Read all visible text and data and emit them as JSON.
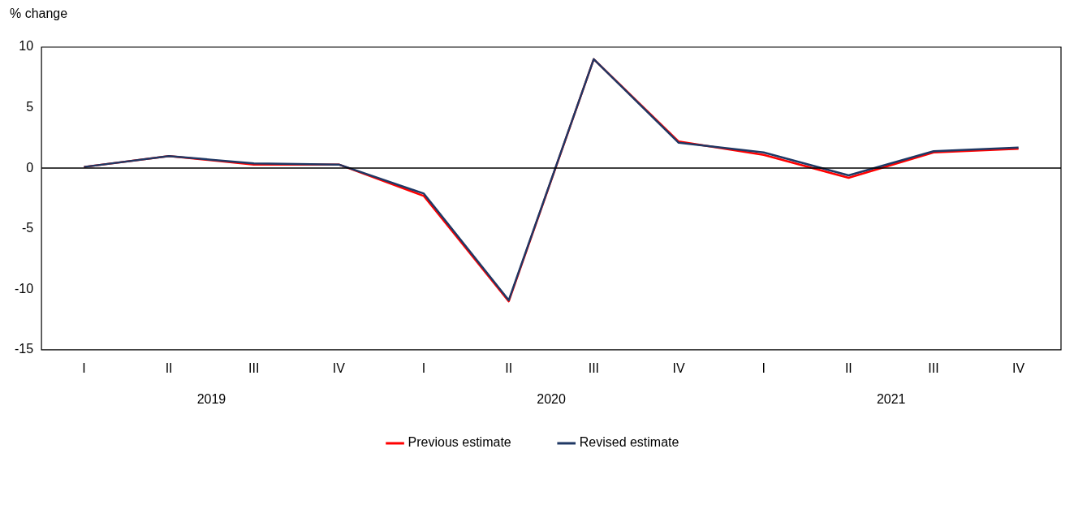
{
  "chart_data": {
    "type": "line",
    "ylabel": "% change",
    "categories": [
      "I",
      "II",
      "III",
      "IV",
      "I",
      "II",
      "III",
      "IV",
      "I",
      "II",
      "III",
      "IV"
    ],
    "series": [
      {
        "name": "Previous estimate",
        "color": "#ff0000",
        "values": [
          0.1,
          1.0,
          0.3,
          0.3,
          -2.3,
          -11.0,
          9.0,
          2.2,
          1.1,
          -0.8,
          1.3,
          1.6
        ]
      },
      {
        "name": "Revised estimate",
        "color": "#1f3864",
        "values": [
          0.1,
          1.0,
          0.4,
          0.3,
          -2.1,
          -10.9,
          9.0,
          2.1,
          1.3,
          -0.6,
          1.4,
          1.7
        ]
      }
    ],
    "annotations": [
      "2019",
      "2020",
      "2021"
    ],
    "ylim": [
      -15,
      10
    ],
    "yticks": [
      -15,
      -10,
      -5,
      0,
      5,
      10
    ],
    "ref_lines": [
      {
        "axis": "y",
        "value": 0,
        "label": null,
        "color": "#000000"
      }
    ],
    "grid": false,
    "legend": "bottom",
    "marker": "none",
    "line_style": "solid"
  }
}
